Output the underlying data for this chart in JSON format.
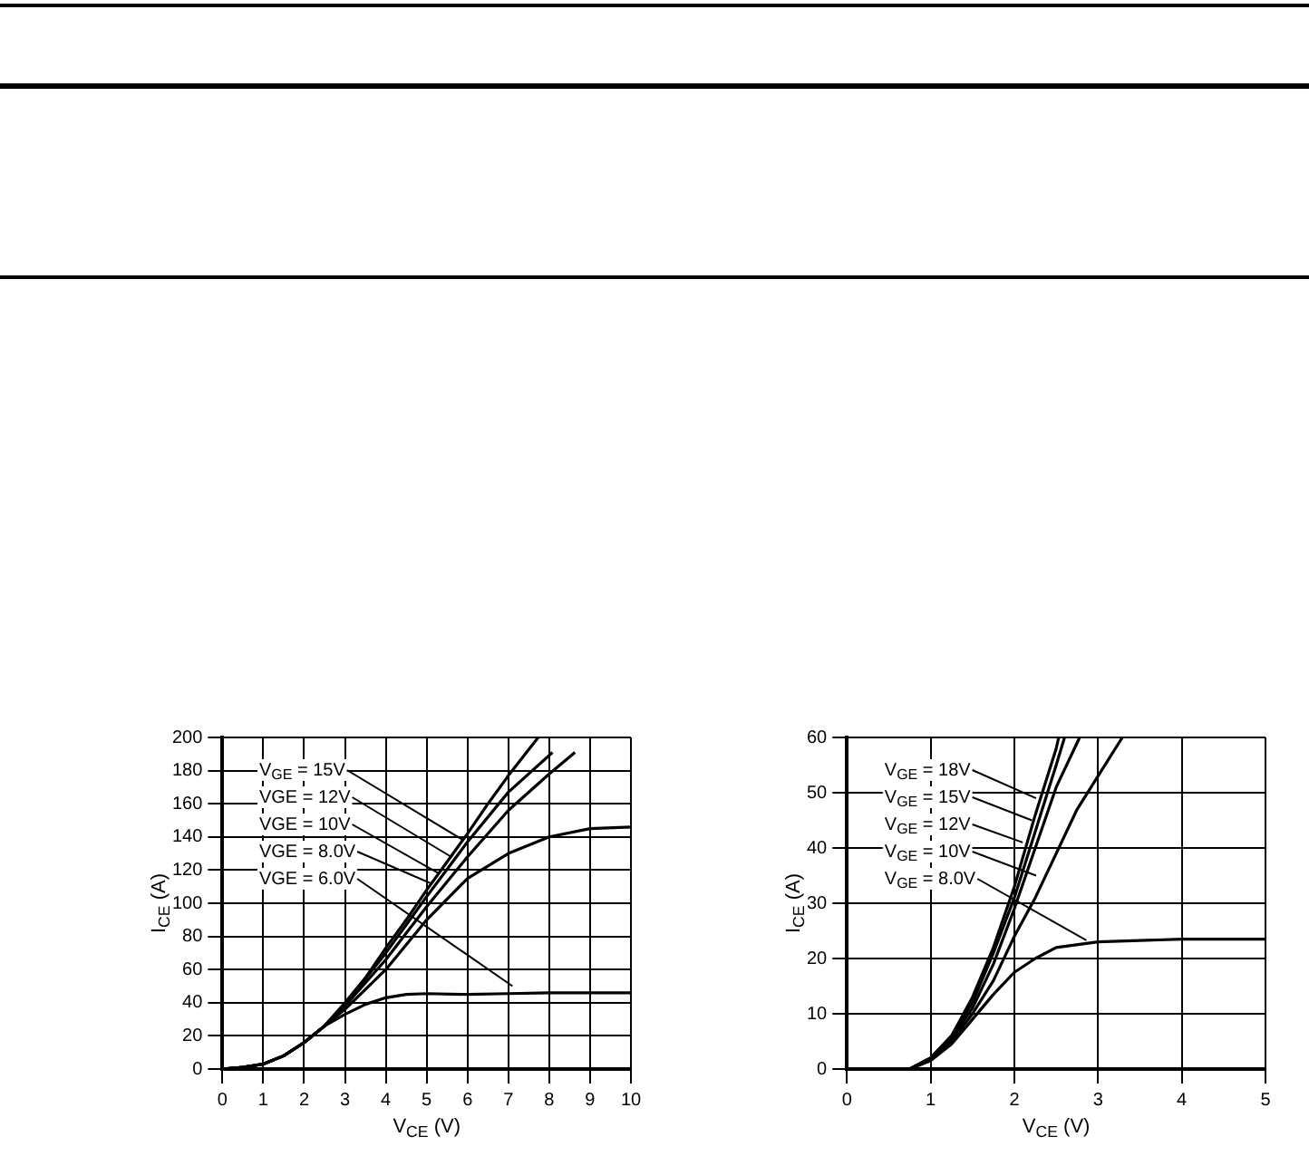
{
  "chart_data": [
    {
      "type": "line",
      "xlabel": "V$_{CE}$ (V)",
      "ylabel": "I$_{CE}$ (A)",
      "xlim": [
        0,
        10
      ],
      "ylim": [
        0,
        200
      ],
      "xticks": [
        0,
        1,
        2,
        3,
        4,
        5,
        6,
        7,
        8,
        9,
        10
      ],
      "yticks": [
        0,
        20,
        40,
        60,
        80,
        100,
        120,
        140,
        160,
        180,
        200
      ],
      "grid": true,
      "legend": false,
      "series": [
        {
          "color": "#000000",
          "x": [
            0,
            0.5,
            1,
            1.5,
            2,
            2.5,
            3,
            3.5,
            4,
            4.5,
            5,
            5.5,
            6,
            6.5,
            7,
            7.73
          ],
          "values": [
            0,
            1,
            3,
            8,
            16,
            26,
            40,
            55,
            73,
            90,
            108,
            125,
            142,
            160,
            177,
            200
          ]
        },
        {
          "color": "#000000",
          "x": [
            0,
            0.5,
            1,
            1.5,
            2,
            2.5,
            3,
            4,
            5,
            6,
            7,
            8.08
          ],
          "values": [
            0,
            1,
            3,
            8,
            16,
            26,
            39,
            70,
            104,
            137,
            167,
            191
          ]
        },
        {
          "color": "#000000",
          "x": [
            0,
            0.5,
            1,
            1.5,
            2,
            2.5,
            3,
            4,
            5,
            6,
            7,
            8,
            8.63
          ],
          "values": [
            0,
            1,
            3,
            8,
            16,
            26,
            38,
            66,
            98,
            128,
            156,
            178,
            191
          ]
        },
        {
          "color": "#000000",
          "x": [
            0,
            0.5,
            1,
            1.5,
            2,
            2.5,
            3,
            4,
            5,
            6,
            7,
            8,
            9,
            10
          ],
          "values": [
            0,
            1,
            3,
            8,
            16,
            26,
            36,
            60,
            90,
            115,
            130,
            140,
            145,
            146
          ]
        },
        {
          "color": "#000000",
          "x": [
            0,
            0.5,
            1,
            1.5,
            2,
            2.5,
            3,
            3.5,
            4,
            4.5,
            5,
            6,
            7,
            8,
            10
          ],
          "values": [
            0,
            1,
            3,
            8,
            16,
            26,
            33,
            39,
            43,
            45,
            45.5,
            45,
            45.5,
            46,
            46
          ]
        }
      ],
      "annotations": [
        {
          "text": "V$_{GE}$ = 15V",
          "x": 5.9,
          "y": 138
        },
        {
          "text": "VGE = 12V",
          "x": 5.6,
          "y": 128
        },
        {
          "text": "VGE = 10V",
          "x": 5.3,
          "y": 118
        },
        {
          "text": "VGE = 8.0V",
          "x": 5.1,
          "y": 112
        },
        {
          "text": "VGE = 6.0V",
          "x": 7.1,
          "y": 50
        }
      ]
    },
    {
      "type": "line",
      "xlabel": "V$_{CE}$ (V)",
      "ylabel": "I$_{CE}$ (A)",
      "xlim": [
        0,
        5
      ],
      "ylim": [
        0,
        60
      ],
      "xticks": [
        0,
        1,
        2,
        3,
        4,
        5
      ],
      "yticks": [
        0,
        10,
        20,
        30,
        40,
        50,
        60
      ],
      "grid": true,
      "legend": false,
      "series": [
        {
          "color": "#000000",
          "x": [
            0,
            0.5,
            0.75,
            1,
            1.25,
            1.5,
            1.75,
            2,
            2.25,
            2.5,
            2.53
          ],
          "values": [
            0,
            0,
            0,
            2,
            6,
            13,
            22,
            33,
            46,
            58,
            60
          ]
        },
        {
          "color": "#000000",
          "x": [
            0,
            0.5,
            0.75,
            1,
            1.25,
            1.5,
            1.75,
            2,
            2.25,
            2.5,
            2.6
          ],
          "values": [
            0,
            0,
            0,
            2,
            6,
            12,
            21,
            31,
            43,
            55,
            60
          ]
        },
        {
          "color": "#000000",
          "x": [
            0,
            0.5,
            0.75,
            1,
            1.25,
            1.5,
            1.75,
            2,
            2.25,
            2.5,
            2.78
          ],
          "values": [
            0,
            0,
            0,
            2,
            5.5,
            11,
            19,
            29,
            40,
            51,
            60
          ]
        },
        {
          "color": "#000000",
          "x": [
            0,
            0.5,
            0.75,
            1,
            1.25,
            1.5,
            1.75,
            2,
            2.25,
            2.5,
            2.75,
            3,
            3.29
          ],
          "values": [
            0,
            0,
            0,
            1.8,
            5,
            10,
            16,
            24,
            31,
            39,
            47,
            53,
            60
          ]
        },
        {
          "color": "#000000",
          "x": [
            0,
            0.5,
            0.75,
            1,
            1.25,
            1.5,
            1.75,
            2,
            2.25,
            2.5,
            3,
            4,
            5
          ],
          "values": [
            0,
            0,
            0,
            1.5,
            4.5,
            9,
            13.5,
            17.5,
            20,
            22,
            23,
            23.5,
            23.5
          ]
        }
      ],
      "annotations": [
        {
          "text": "V$_{GE}$ = 18V",
          "x": 2.26,
          "y": 49
        },
        {
          "text": "V$_{GE}$ = 15V",
          "x": 2.21,
          "y": 45
        },
        {
          "text": "V$_{GE}$ = 12V",
          "x": 2.1,
          "y": 41
        },
        {
          "text": "V$_{GE}$ = 10V",
          "x": 2.26,
          "y": 35
        },
        {
          "text": "V$_{GE}$ = 8.0V",
          "x": 2.86,
          "y": 23.3
        }
      ]
    }
  ]
}
